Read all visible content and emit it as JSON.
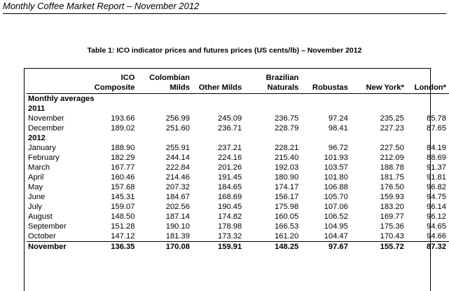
{
  "header": {
    "title": "Monthly Coffee Market Report  –  November 2012"
  },
  "table": {
    "caption": "Table 1: ICO indicator prices and futures prices (US cents/lb) – November 2012",
    "columns": [
      {
        "line1": "ICO",
        "line2": "Composite"
      },
      {
        "line1": "Colombian",
        "line2": "Milds"
      },
      {
        "line1": "",
        "line2": "Other Milds"
      },
      {
        "line1": "Brazilian",
        "line2": "Naturals"
      },
      {
        "line1": "",
        "line2": "Robustas"
      },
      {
        "line1": "",
        "line2": "New York*"
      },
      {
        "line1": "",
        "line2": "London*"
      }
    ],
    "section_label": "Monthly averages",
    "year_2011": "2011",
    "year_2012": "2012",
    "rows_2011": [
      {
        "month": "November",
        "values": [
          "193.66",
          "256.99",
          "245.09",
          "236.75",
          "97.24",
          "235.25",
          "85.78"
        ]
      },
      {
        "month": "December",
        "values": [
          "189.02",
          "251.60",
          "236.71",
          "228.79",
          "98.41",
          "227.23",
          "87.65"
        ]
      }
    ],
    "rows_2012": [
      {
        "month": "January",
        "values": [
          "188.90",
          "255.91",
          "237.21",
          "228.21",
          "96.72",
          "227.50",
          "84.19"
        ]
      },
      {
        "month": "February",
        "values": [
          "182.29",
          "244.14",
          "224.16",
          "215.40",
          "101.93",
          "212.09",
          "88.69"
        ]
      },
      {
        "month": "March",
        "values": [
          "167.77",
          "222.84",
          "201.26",
          "192.03",
          "103.57",
          "188.78",
          "91.37"
        ]
      },
      {
        "month": "April",
        "values": [
          "160.46",
          "214.46",
          "191.45",
          "180.90",
          "101.80",
          "181.75",
          "91.81"
        ]
      },
      {
        "month": "May",
        "values": [
          "157.68",
          "207.32",
          "184.65",
          "174.17",
          "106.88",
          "176.50",
          "96.82"
        ]
      },
      {
        "month": "June",
        "values": [
          "145.31",
          "184.67",
          "168.69",
          "156.17",
          "105.70",
          "159.93",
          "94.75"
        ]
      },
      {
        "month": "July",
        "values": [
          "159.07",
          "202.56",
          "190.45",
          "175.98",
          "107.06",
          "183.20",
          "96.14"
        ]
      },
      {
        "month": "August",
        "values": [
          "148.50",
          "187.14",
          "174.82",
          "160.05",
          "106.52",
          "169.77",
          "96.12"
        ]
      },
      {
        "month": "September",
        "values": [
          "151.28",
          "190.10",
          "178.98",
          "166.53",
          "104.95",
          "175.36",
          "94.65"
        ]
      },
      {
        "month": "October",
        "values": [
          "147.12",
          "181.39",
          "173.32",
          "161.20",
          "104.47",
          "170.43",
          "94.66"
        ]
      }
    ],
    "total_row": {
      "month": "November",
      "values": [
        "136.35",
        "170.08",
        "159.91",
        "148.25",
        "97.67",
        "155.72",
        "87.32"
      ]
    }
  }
}
